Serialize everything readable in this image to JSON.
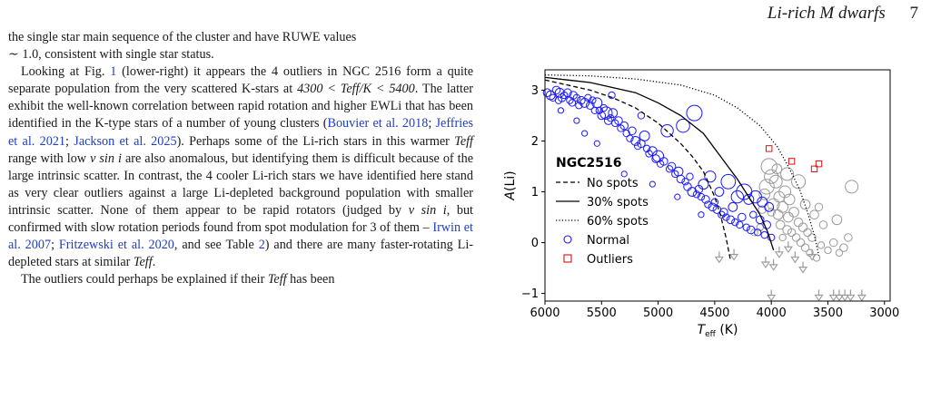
{
  "header": {
    "title": "Li-rich M dwarfs",
    "page_number": "7"
  },
  "text": {
    "p1": {
      "a": "the single star main sequence of the cluster and have RUWE values",
      "b": "∼ 1.0, consistent with single star status."
    },
    "p2": {
      "a": "Looking at Fig. ",
      "fig": "1",
      "b": " (lower-right) it appears the 4 outliers in NGC 2516 form a quite separate population from the very scattered K-stars at ",
      "range": "4300 < Teff/K < 5400",
      "c": ". The latter exhibit the well-known correlation between rapid rotation and higher EWLi that has been identified in the K-type stars of a number of young clusters (",
      "cite1": "Bouvier et al. 2018",
      "sep1": "; ",
      "cite2": "Jeffries et al. 2021",
      "sep2": "; ",
      "cite3": "Jackson et al. 2025",
      "d": "). Perhaps some of the Li-rich stars in this warmer ",
      "teff1": "Teff",
      "e": " range with low ",
      "vsini1": "v sin i",
      "f": " are also anomalous, but identifying them is difficult because of the large intrinsic scatter. In contrast, the 4 cooler Li-rich stars we have identified here stand as very clear outliers against a large Li-depleted background population with smaller intrinsic scatter. None of them appear to be rapid rotators (judged by ",
      "vsini2": "v sin i",
      "g": ", but confirmed with slow rotation periods found from spot modulation for 3 of them – ",
      "cite4": "Irwin et al. 2007",
      "sep3": "; ",
      "cite5": "Fritzewski et al. 2020",
      "h": ", and see Table ",
      "table": "2",
      "i": ") and there are many faster-rotating Li-depleted stars at similar ",
      "teff2": "Teff",
      "j": "."
    },
    "p3": {
      "a": "The outliers could perhaps be explained if their ",
      "teff": "Teff",
      "b": " has been"
    }
  },
  "chart_data": {
    "type": "scatter",
    "xlabel": "Teff (K)",
    "ylabel": "A(Li)",
    "xlim": [
      6000,
      2950
    ],
    "ylim": [
      -1.15,
      3.4
    ],
    "xticks": [
      "6000",
      "5500",
      "5000",
      "4500",
      "4000",
      "3500",
      "3000"
    ],
    "yticks": [
      "−1",
      "0",
      "1",
      "2",
      "3"
    ],
    "legend": {
      "title": "NGC2516",
      "placement": "lower-left",
      "entries": [
        "No spots",
        "30% spots",
        "60% spots",
        "Normal",
        "Outliers"
      ]
    },
    "colors": {
      "normal": "#1a1aff",
      "outliers": "#dd1111",
      "background": "#9a9a9a",
      "model": "#000000"
    },
    "models": [
      {
        "name": "No spots",
        "style": "dashed",
        "points": [
          [
            6000,
            3.2
          ],
          [
            5800,
            3.1
          ],
          [
            5600,
            3.0
          ],
          [
            5400,
            2.85
          ],
          [
            5200,
            2.65
          ],
          [
            5000,
            2.35
          ],
          [
            4800,
            1.95
          ],
          [
            4700,
            1.7
          ],
          [
            4600,
            1.4
          ],
          [
            4550,
            1.15
          ],
          [
            4500,
            0.9
          ],
          [
            4450,
            0.55
          ],
          [
            4400,
            0.1
          ],
          [
            4360,
            -0.35
          ]
        ]
      },
      {
        "name": "30% spots",
        "style": "solid",
        "points": [
          [
            6000,
            3.25
          ],
          [
            5800,
            3.2
          ],
          [
            5600,
            3.15
          ],
          [
            5400,
            3.05
          ],
          [
            5200,
            2.95
          ],
          [
            5000,
            2.75
          ],
          [
            4800,
            2.5
          ],
          [
            4600,
            2.15
          ],
          [
            4450,
            1.7
          ],
          [
            4300,
            1.25
          ],
          [
            4200,
            0.9
          ],
          [
            4100,
            0.55
          ],
          [
            4030,
            0.2
          ],
          [
            3980,
            -0.15
          ]
        ]
      },
      {
        "name": "60% spots",
        "style": "dotted",
        "points": [
          [
            6000,
            3.3
          ],
          [
            5600,
            3.28
          ],
          [
            5200,
            3.22
          ],
          [
            4800,
            3.1
          ],
          [
            4500,
            2.9
          ],
          [
            4300,
            2.65
          ],
          [
            4100,
            2.3
          ],
          [
            3950,
            1.9
          ],
          [
            3850,
            1.5
          ],
          [
            3750,
            1.05
          ],
          [
            3680,
            0.6
          ],
          [
            3620,
            0.15
          ],
          [
            3580,
            -0.25
          ]
        ]
      }
    ],
    "normal": [
      [
        5980,
        2.95,
        5
      ],
      [
        5950,
        2.9,
        6
      ],
      [
        5930,
        2.85,
        4
      ],
      [
        5900,
        3.0,
        5
      ],
      [
        5880,
        2.8,
        4
      ],
      [
        5870,
        2.95,
        6
      ],
      [
        5850,
        2.85,
        5
      ],
      [
        5830,
        2.9,
        4
      ],
      [
        5800,
        2.95,
        5
      ],
      [
        5780,
        2.8,
        4
      ],
      [
        5760,
        2.75,
        4
      ],
      [
        5750,
        2.9,
        5
      ],
      [
        5720,
        2.85,
        4
      ],
      [
        5700,
        2.7,
        4
      ],
      [
        5680,
        2.8,
        5
      ],
      [
        5650,
        2.75,
        6
      ],
      [
        5620,
        2.85,
        4
      ],
      [
        5600,
        2.7,
        5
      ],
      [
        5580,
        2.8,
        4
      ],
      [
        5560,
        2.6,
        4
      ],
      [
        5540,
        2.75,
        7
      ],
      [
        5520,
        2.6,
        4
      ],
      [
        5500,
        2.5,
        5
      ],
      [
        5480,
        2.65,
        4
      ],
      [
        5460,
        2.55,
        9
      ],
      [
        5440,
        2.4,
        5
      ],
      [
        5420,
        2.45,
        4
      ],
      [
        5400,
        2.55,
        6
      ],
      [
        5380,
        2.35,
        4
      ],
      [
        5350,
        2.4,
        5
      ],
      [
        5330,
        2.25,
        4
      ],
      [
        5300,
        2.3,
        5
      ],
      [
        5280,
        2.15,
        4
      ],
      [
        5250,
        2.05,
        4
      ],
      [
        5230,
        2.2,
        5
      ],
      [
        5200,
        2.0,
        6
      ],
      [
        5180,
        1.9,
        4
      ],
      [
        5150,
        1.95,
        5
      ],
      [
        5120,
        2.1,
        7
      ],
      [
        5100,
        1.85,
        4
      ],
      [
        5080,
        1.75,
        4
      ],
      [
        5050,
        1.8,
        6
      ],
      [
        5020,
        1.65,
        5
      ],
      [
        5000,
        1.7,
        8
      ],
      [
        4980,
        1.55,
        4
      ],
      [
        4950,
        1.6,
        5
      ],
      [
        4920,
        2.2,
        9
      ],
      [
        4900,
        1.45,
        4
      ],
      [
        4880,
        1.5,
        5
      ],
      [
        4850,
        1.35,
        4
      ],
      [
        4820,
        1.4,
        6
      ],
      [
        4800,
        1.25,
        5
      ],
      [
        4780,
        2.3,
        10
      ],
      [
        4760,
        1.2,
        4
      ],
      [
        4740,
        1.1,
        5
      ],
      [
        4720,
        1.3,
        4
      ],
      [
        4700,
        1.0,
        6
      ],
      [
        4680,
        2.55,
        12
      ],
      [
        4660,
        0.95,
        4
      ],
      [
        4640,
        1.05,
        5
      ],
      [
        4620,
        0.9,
        4
      ],
      [
        4600,
        1.15,
        7
      ],
      [
        4580,
        0.85,
        5
      ],
      [
        4560,
        0.75,
        4
      ],
      [
        4540,
        1.3,
        8
      ],
      [
        4520,
        0.7,
        5
      ],
      [
        4500,
        0.8,
        4
      ],
      [
        4480,
        0.65,
        5
      ],
      [
        4460,
        1.0,
        6
      ],
      [
        4440,
        0.55,
        4
      ],
      [
        4420,
        0.6,
        5
      ],
      [
        4400,
        0.5,
        4
      ],
      [
        4380,
        1.2,
        11
      ],
      [
        4360,
        0.45,
        5
      ],
      [
        4340,
        0.7,
        6
      ],
      [
        4320,
        0.4,
        4
      ],
      [
        4300,
        0.9,
        9
      ],
      [
        4280,
        0.35,
        4
      ],
      [
        4260,
        0.5,
        5
      ],
      [
        4240,
        1.0,
        12
      ],
      [
        4220,
        0.3,
        4
      ],
      [
        4200,
        0.85,
        7
      ],
      [
        4180,
        0.25,
        5
      ],
      [
        4160,
        0.55,
        4
      ],
      [
        4140,
        0.9,
        9
      ],
      [
        4120,
        0.2,
        4
      ],
      [
        4100,
        0.45,
        5
      ],
      [
        4080,
        0.8,
        7
      ],
      [
        4060,
        0.15,
        4
      ],
      [
        4040,
        0.35,
        5
      ],
      [
        4020,
        0.7,
        6
      ],
      [
        4000,
        0.1,
        4
      ],
      [
        5540,
        1.95,
        3
      ],
      [
        5300,
        1.35,
        3
      ],
      [
        5650,
        2.15,
        3
      ],
      [
        5050,
        1.15,
        3
      ],
      [
        4830,
        0.9,
        3
      ],
      [
        4620,
        0.55,
        3
      ],
      [
        5720,
        2.4,
        3
      ],
      [
        5860,
        2.6,
        3
      ],
      [
        5410,
        2.9,
        4
      ],
      [
        5150,
        2.5,
        4
      ]
    ],
    "outliers": [
      [
        4020,
        1.85
      ],
      [
        3820,
        1.6
      ],
      [
        3620,
        1.45
      ],
      [
        3580,
        1.55
      ]
    ],
    "background": [
      [
        4060,
        0.95,
        8
      ],
      [
        4040,
        1.1,
        12
      ],
      [
        4020,
        1.5,
        13
      ],
      [
        4000,
        1.3,
        11
      ],
      [
        3980,
        0.75,
        9
      ],
      [
        3960,
        1.2,
        10
      ],
      [
        3940,
        0.55,
        7
      ],
      [
        3930,
        0.9,
        8
      ],
      [
        3920,
        0.35,
        6
      ],
      [
        3900,
        0.7,
        8
      ],
      [
        3880,
        1.0,
        9
      ],
      [
        3860,
        0.25,
        6
      ],
      [
        3850,
        0.5,
        7
      ],
      [
        3840,
        0.85,
        8
      ],
      [
        3820,
        0.2,
        5
      ],
      [
        3800,
        0.6,
        7
      ],
      [
        3780,
        0.1,
        5
      ],
      [
        3760,
        0.4,
        6
      ],
      [
        3740,
        0.0,
        5
      ],
      [
        3720,
        0.3,
        6
      ],
      [
        3700,
        -0.1,
        5
      ],
      [
        3680,
        0.2,
        5
      ],
      [
        3660,
        -0.2,
        4
      ],
      [
        3640,
        0.1,
        5
      ],
      [
        3620,
        0.55,
        6
      ],
      [
        3600,
        -0.3,
        4
      ],
      [
        3580,
        0.7,
        5
      ],
      [
        3560,
        -0.05,
        4
      ],
      [
        3540,
        0.35,
        5
      ],
      [
        3500,
        -0.15,
        4
      ],
      [
        3450,
        0.0,
        5
      ],
      [
        3420,
        0.45,
        7
      ],
      [
        3400,
        -0.2,
        4
      ],
      [
        3360,
        -0.1,
        5
      ],
      [
        3320,
        0.1,
        5
      ],
      [
        3290,
        1.1,
        10
      ],
      [
        3950,
        1.45,
        7
      ],
      [
        4080,
        0.65,
        5
      ],
      [
        4100,
        0.3,
        4
      ],
      [
        4150,
        0.2,
        4
      ],
      [
        3900,
        0.1,
        4
      ],
      [
        3700,
        0.75,
        7
      ],
      [
        3760,
        1.2,
        11
      ],
      [
        3860,
        1.35,
        10
      ],
      [
        4000,
        0.6,
        5
      ]
    ],
    "upper_limits": [
      [
        4460,
        -0.3
      ],
      [
        4330,
        -0.25
      ],
      [
        4050,
        -0.4
      ],
      [
        3980,
        -0.45
      ],
      [
        3930,
        -0.2
      ],
      [
        3850,
        -0.1
      ],
      [
        3790,
        -0.3
      ],
      [
        4000,
        -1.05
      ],
      [
        3580,
        -1.05
      ],
      [
        3450,
        -1.05
      ],
      [
        3400,
        -1.05
      ],
      [
        3350,
        -1.05
      ],
      [
        3300,
        -1.05
      ],
      [
        3200,
        -1.05
      ],
      [
        3640,
        -0.25
      ],
      [
        3720,
        -0.5
      ]
    ]
  }
}
